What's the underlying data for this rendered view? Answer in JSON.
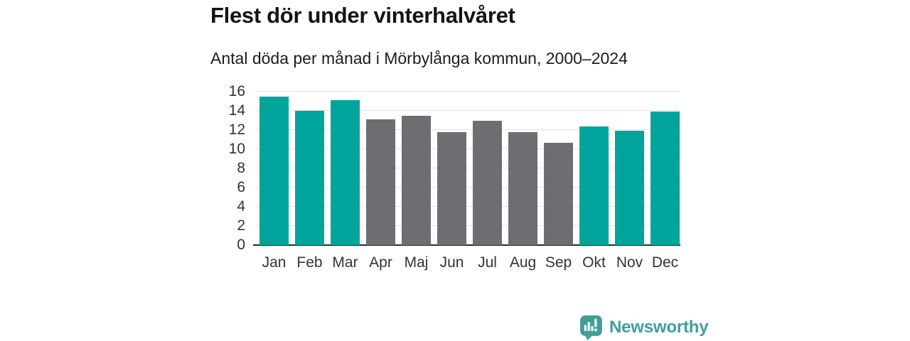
{
  "chart": {
    "title": "Flest dör under vinterhalvåret",
    "subtitle": "Antal döda per månad i Mörbylånga kommun, 2000–2024"
  },
  "chart_data": {
    "type": "bar",
    "categories": [
      "Jan",
      "Feb",
      "Mar",
      "Apr",
      "Maj",
      "Jun",
      "Jul",
      "Aug",
      "Sep",
      "Okt",
      "Nov",
      "Dec"
    ],
    "values": [
      15.5,
      14.0,
      15.1,
      13.1,
      13.5,
      11.8,
      13.0,
      11.8,
      10.7,
      12.4,
      11.9,
      13.9
    ],
    "bar_color_keys": [
      "winter",
      "winter",
      "winter",
      "summer",
      "summer",
      "summer",
      "summer",
      "summer",
      "summer",
      "winter",
      "winter",
      "winter"
    ],
    "palette": {
      "winter": "#00a49a",
      "summer": "#6e6d72"
    },
    "title": "Flest dör under vinterhalvåret",
    "xlabel": "",
    "ylabel": "",
    "ylim": [
      0,
      16
    ],
    "yticks": [
      0,
      2,
      4,
      6,
      8,
      10,
      12,
      14,
      16
    ],
    "grid": true,
    "legend": "none",
    "gridline_color": "#e2e2e2",
    "axis_color": "#2b2b2b",
    "label_color": "#333333"
  },
  "brand": {
    "name": "Newsworthy",
    "color": "#3f9f97",
    "icon": "newsworthy-chart-bubble-icon"
  }
}
